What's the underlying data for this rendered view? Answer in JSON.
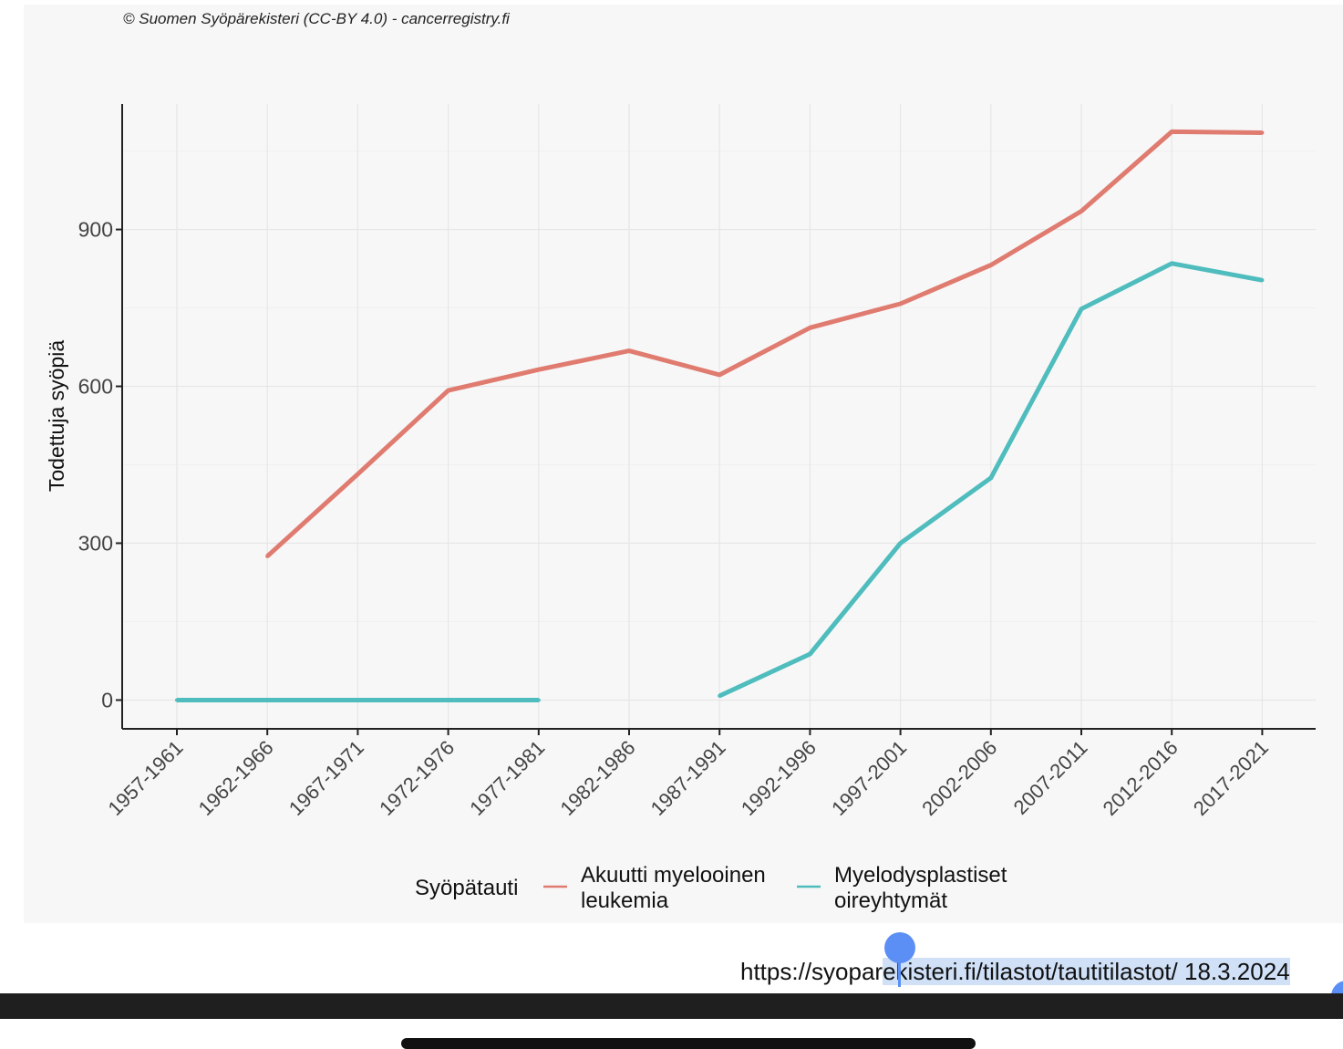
{
  "copyright": "© Suomen Syöpärekisteri (CC-BY 4.0) - cancerregistry.fi",
  "source": {
    "url_prefix": "https://syopar",
    "url_selected": "ekisteri.fi/tilastot/tautitilastot/ 18.3.2024"
  },
  "chart_data": {
    "type": "line",
    "title": "",
    "xlabel": "",
    "ylabel": "Todettuja syöpiä",
    "ylim": [
      -55,
      1140
    ],
    "yticks": [
      0,
      300,
      600,
      900
    ],
    "grid": true,
    "legend_title": "Syöpätauti",
    "legend_position": "bottom",
    "categories": [
      "1957-1961",
      "1962-1966",
      "1967-1971",
      "1972-1976",
      "1977-1981",
      "1982-1986",
      "1987-1991",
      "1992-1996",
      "1997-2001",
      "2002-2006",
      "2007-2011",
      "2012-2016",
      "2017-2021"
    ],
    "series": [
      {
        "name": "Akuutti myelooinen leukemia",
        "color": "#e07b70",
        "values": [
          null,
          275,
          432,
          592,
          632,
          668,
          622,
          712,
          758,
          832,
          935,
          1087,
          1085
        ]
      },
      {
        "name": "Myelodysplastiset oireyhtymät",
        "color": "#4fbcbd",
        "values": [
          0,
          0,
          0,
          0,
          0,
          null,
          8,
          88,
          300,
          425,
          748,
          835,
          803
        ]
      }
    ]
  }
}
